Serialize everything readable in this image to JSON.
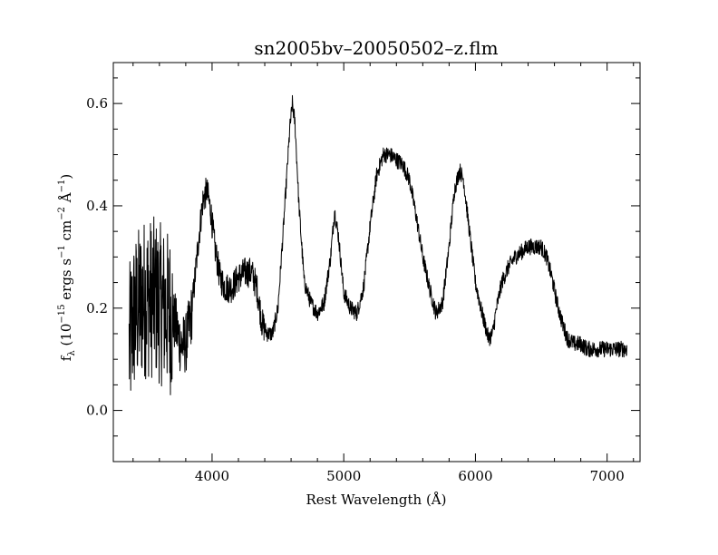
{
  "chart_data": {
    "type": "line",
    "title": "sn2005bv–20050502–z.flm",
    "xlabel": "Rest Wavelength (Å)",
    "ylabel": {
      "p1": "f",
      "sub": "λ",
      "p2": " (10",
      "exp1": "−15",
      "p3": " ergs s",
      "exp2": "−1",
      "p4": " cm",
      "exp3": "−2",
      "p5": " Å",
      "exp4": "−1",
      "p6": ")"
    },
    "xlim": [
      3250,
      7250
    ],
    "ylim": [
      -0.1,
      0.68
    ],
    "xticks": [
      4000,
      5000,
      6000,
      7000
    ],
    "xtick_labels": [
      "4000",
      "5000",
      "6000",
      "7000"
    ],
    "yticks": [
      0.0,
      0.2,
      0.4,
      0.6
    ],
    "ytick_labels": [
      "0.0",
      "0.2",
      "0.4",
      "0.6"
    ],
    "grid": false,
    "color": "#000000",
    "series": [
      {
        "x": [
          3370,
          3400,
          3440,
          3480,
          3520,
          3560,
          3600,
          3640,
          3680,
          3720,
          3760,
          3800,
          3840,
          3870,
          3900,
          3930,
          3960,
          3990,
          4020,
          4060,
          4100,
          4150,
          4200,
          4250,
          4300,
          4340,
          4380,
          4420,
          4460,
          4500,
          4540,
          4570,
          4590,
          4610,
          4630,
          4660,
          4700,
          4750,
          4800,
          4850,
          4900,
          4930,
          4960,
          5000,
          5050,
          5100,
          5150,
          5200,
          5250,
          5300,
          5350,
          5400,
          5450,
          5500,
          5550,
          5600,
          5650,
          5700,
          5750,
          5800,
          5840,
          5880,
          5910,
          5950,
          6000,
          6050,
          6100,
          6130,
          6160,
          6200,
          6250,
          6300,
          6350,
          6400,
          6450,
          6500,
          6540,
          6580,
          6620,
          6660,
          6700,
          6750,
          6800,
          6850,
          6900,
          6950,
          7000,
          7050,
          7100,
          7150
        ],
        "y": [
          0.12,
          0.18,
          0.2,
          0.22,
          0.22,
          0.22,
          0.21,
          0.2,
          0.19,
          0.17,
          0.13,
          0.13,
          0.18,
          0.26,
          0.34,
          0.41,
          0.43,
          0.39,
          0.32,
          0.26,
          0.24,
          0.24,
          0.26,
          0.27,
          0.27,
          0.24,
          0.17,
          0.15,
          0.15,
          0.2,
          0.35,
          0.47,
          0.55,
          0.6,
          0.56,
          0.4,
          0.25,
          0.21,
          0.19,
          0.21,
          0.3,
          0.39,
          0.34,
          0.23,
          0.2,
          0.19,
          0.24,
          0.36,
          0.46,
          0.5,
          0.5,
          0.49,
          0.48,
          0.45,
          0.38,
          0.3,
          0.24,
          0.19,
          0.21,
          0.32,
          0.43,
          0.47,
          0.45,
          0.36,
          0.25,
          0.19,
          0.14,
          0.15,
          0.2,
          0.25,
          0.28,
          0.3,
          0.31,
          0.32,
          0.32,
          0.32,
          0.3,
          0.26,
          0.21,
          0.17,
          0.14,
          0.13,
          0.13,
          0.12,
          0.12,
          0.12,
          0.12,
          0.12,
          0.12,
          0.12
        ]
      }
    ]
  }
}
